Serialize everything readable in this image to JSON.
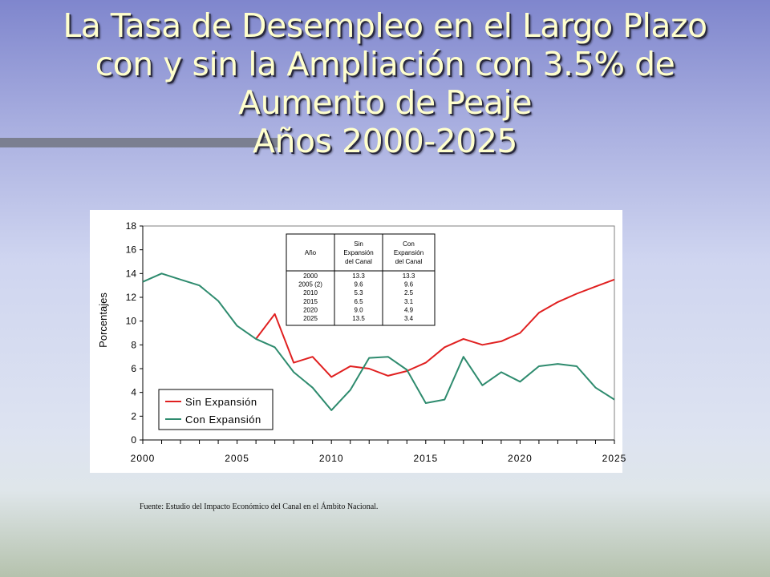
{
  "slide": {
    "title_lines": [
      "La Tasa de Desempleo en el Largo Plazo",
      "con y sin la Ampliación con 3.5% de",
      "Aumento de Peaje",
      "Años 2000-2025"
    ],
    "source": "Fuente: Estudio del Impacto Económico del Canal en el Ámbito Nacional."
  },
  "chart_data": {
    "type": "line",
    "title": "",
    "xlabel": "",
    "ylabel": "Porcentajes",
    "xlim": [
      2000,
      2025
    ],
    "ylim": [
      0,
      18
    ],
    "x_ticks": [
      2000,
      2005,
      2010,
      2015,
      2020,
      2025
    ],
    "y_ticks": [
      0,
      2,
      4,
      6,
      8,
      10,
      12,
      14,
      16,
      18
    ],
    "grid": false,
    "legend_position": "bottom-left",
    "colors": {
      "sin": "#e02020",
      "con": "#2e8b6e"
    },
    "series": [
      {
        "name": "Sin Expansión",
        "x": [
          2006,
          2007,
          2008,
          2009,
          2010,
          2011,
          2012,
          2013,
          2014,
          2015,
          2016,
          2017,
          2018,
          2019,
          2020,
          2021,
          2022,
          2023,
          2024,
          2025
        ],
        "values": [
          8.5,
          10.6,
          6.5,
          7.0,
          5.3,
          6.2,
          6.0,
          5.4,
          5.8,
          6.5,
          7.8,
          8.5,
          8.0,
          8.3,
          9.0,
          10.7,
          11.6,
          12.3,
          12.9,
          13.5
        ]
      },
      {
        "name": "Con Expansión",
        "x": [
          2000,
          2001,
          2002,
          2003,
          2004,
          2005,
          2006,
          2007,
          2008,
          2009,
          2010,
          2011,
          2012,
          2013,
          2014,
          2015,
          2016,
          2017,
          2018,
          2019,
          2020,
          2021,
          2022,
          2023,
          2024,
          2025
        ],
        "values": [
          13.3,
          14.0,
          13.5,
          13.0,
          11.7,
          9.6,
          8.5,
          7.8,
          5.7,
          4.4,
          2.5,
          4.2,
          6.9,
          7.0,
          5.9,
          3.1,
          3.4,
          7.0,
          4.6,
          5.7,
          4.9,
          6.2,
          6.4,
          6.2,
          4.4,
          3.4
        ]
      }
    ],
    "table": {
      "headers": [
        [
          "Año"
        ],
        [
          "Sin",
          "Expansión",
          "del Canal"
        ],
        [
          "Con",
          "Expansión",
          "del Canal"
        ]
      ],
      "rows": [
        [
          "2000",
          "13.3",
          "13.3"
        ],
        [
          "2005 (2)",
          "9.6",
          "9.6"
        ],
        [
          "2010",
          "5.3",
          "2.5"
        ],
        [
          "2015",
          "6.5",
          "3.1"
        ],
        [
          "2020",
          "9.0",
          "4.9"
        ],
        [
          "2025",
          "13.5",
          "3.4"
        ]
      ]
    }
  }
}
